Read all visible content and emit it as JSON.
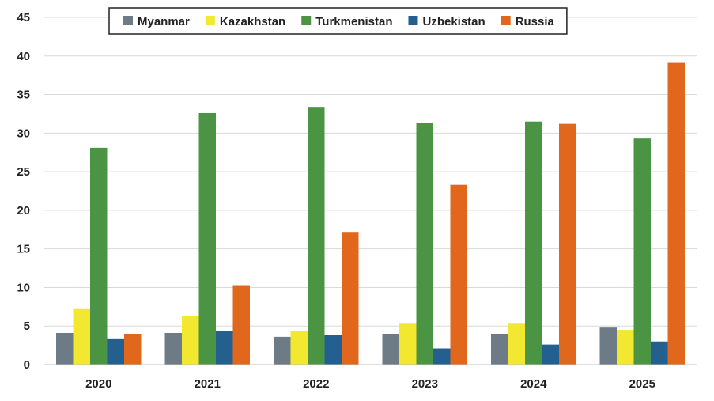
{
  "chart_data": {
    "type": "bar",
    "categories": [
      "2020",
      "2021",
      "2022",
      "2023",
      "2024",
      "2025"
    ],
    "series": [
      {
        "name": "Myanmar",
        "color": "#6d7b86",
        "values": [
          4.1,
          4.1,
          3.6,
          4.0,
          4.0,
          4.8
        ]
      },
      {
        "name": "Kazakhstan",
        "color": "#f2e830",
        "values": [
          7.2,
          6.3,
          4.3,
          5.3,
          5.3,
          4.5
        ]
      },
      {
        "name": "Turkmenistan",
        "color": "#4a9444",
        "values": [
          28.1,
          32.6,
          33.4,
          31.3,
          31.5,
          29.3
        ]
      },
      {
        "name": "Uzbekistan",
        "color": "#23608f",
        "values": [
          3.4,
          4.4,
          3.8,
          2.1,
          2.6,
          3.0
        ]
      },
      {
        "name": "Russia",
        "color": "#e0671c",
        "values": [
          4.0,
          10.3,
          17.2,
          23.3,
          31.2,
          39.1
        ]
      }
    ],
    "title": "",
    "xlabel": "",
    "ylabel": "",
    "ylim": [
      0,
      45
    ],
    "yticks": [
      "0",
      "5",
      "10",
      "15",
      "20",
      "25",
      "30",
      "35",
      "40",
      "45"
    ],
    "grid": true,
    "legend_position": "top"
  }
}
